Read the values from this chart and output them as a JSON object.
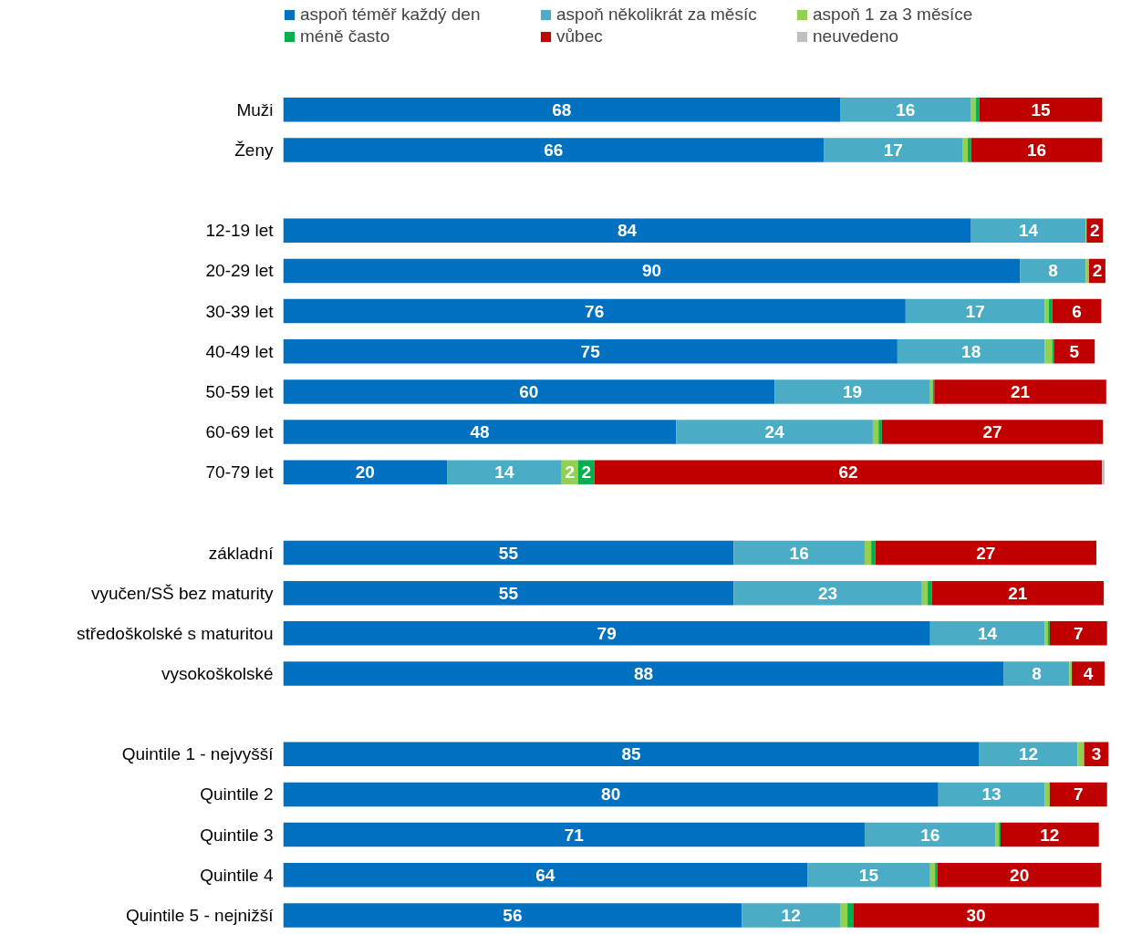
{
  "chart_data": {
    "type": "bar",
    "orientation": "horizontal",
    "stacked": true,
    "legend": "top",
    "grid": false,
    "categories": [
      "Muži",
      "Ženy",
      null,
      "12-19 let",
      "20-29 let",
      "30-39 let",
      "40-49 let",
      "50-59 let",
      "60-69 let",
      "70-79 let",
      null,
      "základní",
      "vyučen/SŠ bez maturity",
      "středoškolské s maturitou",
      "vysokoškolské",
      null,
      "Quintile 1 - nejvyšší",
      "Quintile 2",
      "Quintile 3",
      "Quintile 4",
      "Quintile 5 - nejnižší"
    ],
    "series": [
      {
        "name": "aspoň téměř každý den",
        "color": "#0070c0",
        "values": [
          68,
          66,
          null,
          84,
          90,
          76,
          75,
          60,
          48,
          20,
          null,
          55,
          55,
          79,
          88,
          null,
          85,
          80,
          71,
          64,
          56
        ],
        "value_labels": [
          "68",
          "66",
          null,
          "84",
          "90",
          "76",
          "75",
          "60",
          "48",
          "20",
          null,
          "55",
          "55",
          "79",
          "88",
          null,
          "85",
          "80",
          "71",
          "64",
          "56"
        ]
      },
      {
        "name": "aspoň několikrát za měsíc",
        "color": "#4bacc6",
        "values": [
          16,
          17,
          null,
          14,
          8,
          17,
          18,
          19,
          24,
          14,
          null,
          16,
          23,
          14,
          8,
          null,
          12,
          13,
          16,
          15,
          12
        ],
        "value_labels": [
          "16",
          "17",
          null,
          "14",
          "8",
          "17",
          "18",
          "19",
          "24",
          "14",
          null,
          "16",
          "23",
          "14",
          "8",
          null,
          "12",
          "13",
          "16",
          "15",
          "12"
        ]
      },
      {
        "name": "aspoň 1 za 3 měsíce",
        "color": "#92d050",
        "values": [
          0.6,
          0.6,
          null,
          0.1,
          0.4,
          0.5,
          0.9,
          0.3,
          0.7,
          2,
          null,
          0.8,
          0.7,
          0.4,
          0.3,
          null,
          0.8,
          0.6,
          0.4,
          0.6,
          0.9
        ],
        "value_labels": [
          null,
          null,
          null,
          null,
          null,
          null,
          null,
          null,
          null,
          "2",
          null,
          null,
          null,
          null,
          null,
          null,
          null,
          null,
          null,
          null,
          null
        ]
      },
      {
        "name": "méně často",
        "color": "#00b050",
        "values": [
          0.4,
          0.4,
          null,
          0,
          0,
          0.4,
          0.2,
          0.2,
          0.4,
          2,
          null,
          0.5,
          0.5,
          0.2,
          0,
          null,
          0,
          0,
          0.2,
          0.3,
          0.7
        ],
        "value_labels": [
          null,
          null,
          null,
          null,
          null,
          null,
          null,
          null,
          null,
          "2",
          null,
          null,
          null,
          null,
          null,
          null,
          null,
          null,
          null,
          null,
          null
        ]
      },
      {
        "name": "vůbec",
        "color": "#c00000",
        "values": [
          15,
          16,
          null,
          2,
          2,
          6,
          5,
          21,
          27,
          62,
          null,
          27,
          21,
          7,
          4,
          null,
          3,
          7,
          12,
          20,
          30
        ],
        "value_labels": [
          "15",
          "16",
          null,
          "2",
          "2",
          "6",
          "5",
          "21",
          "27",
          "62",
          null,
          "27",
          "21",
          "7",
          "4",
          null,
          "3",
          "7",
          "12",
          "20",
          "30"
        ]
      },
      {
        "name": "neuvedeno",
        "color": "#bfbfbf",
        "values": [
          0,
          0,
          null,
          0,
          0,
          0,
          0,
          0,
          0,
          0.3,
          null,
          0,
          0,
          0,
          0,
          null,
          0,
          0,
          0,
          0,
          0
        ],
        "value_labels": [
          null,
          null,
          null,
          null,
          null,
          null,
          null,
          null,
          null,
          null,
          null,
          null,
          null,
          null,
          null,
          null,
          null,
          null,
          null,
          null,
          null
        ]
      }
    ]
  }
}
